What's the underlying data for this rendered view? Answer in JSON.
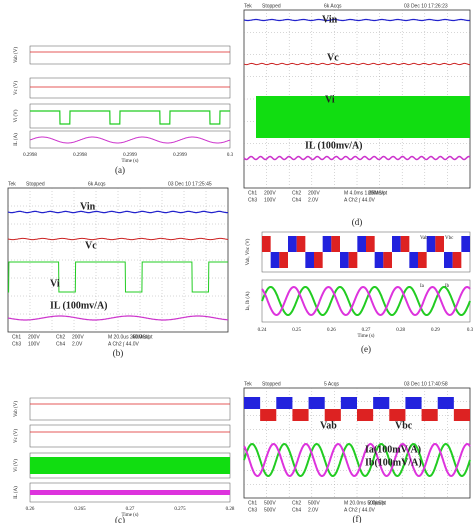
{
  "panels": [
    {
      "caption": "(a)",
      "y_labels": [
        "Vab (V)",
        "Vc (V)",
        "Vi (V)",
        "IL (A)"
      ],
      "x_ticks": [
        "0.2998",
        "0.2998",
        "0.2999",
        "0.2999",
        "0.3"
      ],
      "x_label": "Time (s)"
    },
    {
      "caption": "(b)",
      "header": [
        "Tek",
        "Stopped",
        "6k Acqs",
        "03 Dec 10 17:25:45"
      ],
      "traces": [
        "Vin",
        "Vc",
        "Vi",
        "IL (100mv/A)"
      ],
      "footer": [
        "Ch1",
        "200V",
        "Ch2",
        "200V",
        "M 20.0us 250MS/s",
        "40.0ns/pt",
        "Ch3",
        "100V",
        "Ch4",
        "2.0V",
        "A Ch2 ∫ 44.0V"
      ]
    },
    {
      "caption": "(c)",
      "y_labels": [
        "Vab (V)",
        "Vc (V)",
        "Vi (V)",
        "IL (A)"
      ],
      "x_ticks": [
        "0.26",
        "0.265",
        "0.27",
        "0.275",
        "0.28"
      ],
      "x_label": "Time (s)"
    },
    {
      "caption": "(d)",
      "header": [
        "Tek",
        "Stopped",
        "6k Acqs",
        "03 Dec 10 17:26:23"
      ],
      "traces": [
        "Vin",
        "Vc",
        "Vi",
        "IL (100mv/A)"
      ],
      "footer": [
        "Ch1",
        "200V",
        "Ch2",
        "200V",
        "M 4.0ms 1.25MS/s",
        "800ns/pt",
        "Ch3",
        "100V",
        "Ch4",
        "2.0V",
        "A Ch2 ∫ 44.0V"
      ]
    },
    {
      "caption": "(e)",
      "y_labels": [
        "Vab, Vbc (V)",
        "Ia, Ib (A)"
      ],
      "legend": [
        "Vab",
        "Vbc",
        "Ia",
        "Ib"
      ],
      "x_ticks": [
        "0.24",
        "0.25",
        "0.26",
        "0.27",
        "0.28",
        "0.29",
        "0.3"
      ],
      "x_label": "Time (s)"
    },
    {
      "caption": "(f)",
      "header": [
        "Tek",
        "Stopped",
        "5 Acqs",
        "03 Dec 10 17:40:58"
      ],
      "traces": [
        "Vab",
        "Vbc",
        "Ia(100mV/A)",
        "Ib(100mV/A)"
      ],
      "footer": [
        "Ch1",
        "500V",
        "Ch2",
        "500V",
        "M 20.0ms 500kS/s",
        "2.0μs/pt",
        "Ch3",
        "500V",
        "Ch4",
        "2.0V",
        "A Ch2 ∫ 44.0V"
      ]
    }
  ]
}
